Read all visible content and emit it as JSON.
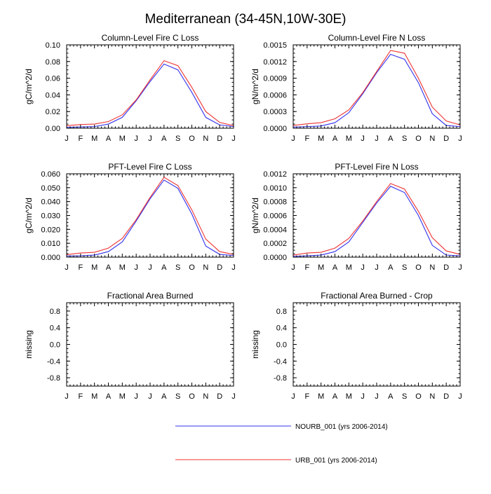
{
  "figure": {
    "title": "Mediterranean (34-45N,10W-30E)"
  },
  "legend": {
    "entries": [
      {
        "name": "NOURB_001 (yrs 2006-2014)",
        "color": "#3333ee"
      },
      {
        "name": "URB_001 (yrs 2006-2014)",
        "color": "#ee3333"
      }
    ]
  },
  "chart_data": [
    {
      "type": "line",
      "title": "Column-Level Fire C Loss",
      "xlabel": "",
      "ylabel": "gC/m^2/d",
      "categories": [
        "J",
        "F",
        "M",
        "A",
        "M",
        "J",
        "J",
        "A",
        "S",
        "O",
        "N",
        "D",
        "J"
      ],
      "ylim": [
        0,
        0.1
      ],
      "yticks": [
        "0.00",
        "0.02",
        "0.04",
        "0.06",
        "0.08",
        "0.10"
      ],
      "series": [
        {
          "name": "NOURB_001 (yrs 2006-2014)",
          "color": "#3333ee",
          "values": [
            0.001,
            0.0015,
            0.002,
            0.005,
            0.013,
            0.033,
            0.056,
            0.077,
            0.07,
            0.043,
            0.013,
            0.004,
            0.002
          ]
        },
        {
          "name": "URB_001 (yrs 2006-2014)",
          "color": "#ee3333",
          "values": [
            0.003,
            0.0045,
            0.005,
            0.008,
            0.016,
            0.034,
            0.058,
            0.081,
            0.075,
            0.049,
            0.02,
            0.007,
            0.003
          ]
        }
      ]
    },
    {
      "type": "line",
      "title": "Column-Level Fire N Loss",
      "xlabel": "",
      "ylabel": "gN/m^2/d",
      "categories": [
        "J",
        "F",
        "M",
        "A",
        "M",
        "J",
        "J",
        "A",
        "S",
        "O",
        "N",
        "D",
        "J"
      ],
      "ylim": [
        0,
        0.0015
      ],
      "yticks": [
        "0.0000",
        "0.0003",
        "0.0006",
        "0.0009",
        "0.0012",
        "0.0015"
      ],
      "series": [
        {
          "name": "NOURB_001 (yrs 2006-2014)",
          "color": "#3333ee",
          "values": [
            2e-05,
            3e-05,
            4e-05,
            0.0001,
            0.00028,
            0.00062,
            0.001,
            0.00133,
            0.00124,
            0.00082,
            0.00026,
            5e-05,
            3e-05
          ]
        },
        {
          "name": "URB_001 (yrs 2006-2014)",
          "color": "#ee3333",
          "values": [
            5e-05,
            8e-05,
            0.0001,
            0.00017,
            0.00033,
            0.00064,
            0.00102,
            0.0014,
            0.00135,
            0.0009,
            0.00038,
            0.00013,
            6e-05
          ]
        }
      ]
    },
    {
      "type": "line",
      "title": "PFT-Level Fire C Loss",
      "xlabel": "",
      "ylabel": "gC/m^2/d",
      "categories": [
        "J",
        "F",
        "M",
        "A",
        "M",
        "J",
        "J",
        "A",
        "S",
        "O",
        "N",
        "D",
        "J"
      ],
      "ylim": [
        0,
        0.06
      ],
      "yticks": [
        "0.000",
        "0.010",
        "0.020",
        "0.030",
        "0.040",
        "0.050",
        "0.060"
      ],
      "series": [
        {
          "name": "NOURB_001 (yrs 2006-2014)",
          "color": "#3333ee",
          "values": [
            0.0008,
            0.001,
            0.0015,
            0.004,
            0.011,
            0.026,
            0.042,
            0.0555,
            0.0495,
            0.031,
            0.008,
            0.002,
            0.0012
          ]
        },
        {
          "name": "URB_001 (yrs 2006-2014)",
          "color": "#ee3333",
          "values": [
            0.0018,
            0.003,
            0.0035,
            0.0065,
            0.0135,
            0.027,
            0.043,
            0.0575,
            0.0515,
            0.034,
            0.013,
            0.004,
            0.002
          ]
        }
      ]
    },
    {
      "type": "line",
      "title": "PFT-Level Fire N Loss",
      "xlabel": "",
      "ylabel": "gN/m^2/d",
      "categories": [
        "J",
        "F",
        "M",
        "A",
        "M",
        "J",
        "J",
        "A",
        "S",
        "O",
        "N",
        "D",
        "J"
      ],
      "ylim": [
        0,
        0.0012
      ],
      "yticks": [
        "0.0000",
        "0.0002",
        "0.0004",
        "0.0006",
        "0.0008",
        "0.0010",
        "0.0012"
      ],
      "series": [
        {
          "name": "NOURB_001 (yrs 2006-2014)",
          "color": "#3333ee",
          "values": [
            1e-05,
            2e-05,
            3e-05,
            8e-05,
            0.00022,
            0.0005,
            0.00078,
            0.00102,
            0.00093,
            0.0006,
            0.00017,
            3e-05,
            2e-05
          ]
        },
        {
          "name": "URB_001 (yrs 2006-2014)",
          "color": "#ee3333",
          "values": [
            3e-05,
            6e-05,
            7e-05,
            0.00013,
            0.00027,
            0.00052,
            0.0008,
            0.00106,
            0.00098,
            0.00066,
            0.00028,
            9e-05,
            4e-05
          ]
        }
      ]
    },
    {
      "type": "line",
      "title": "Fractional Area Burned",
      "xlabel": "",
      "ylabel": "missing",
      "categories": [
        "J",
        "F",
        "M",
        "A",
        "M",
        "J",
        "J",
        "A",
        "S",
        "O",
        "N",
        "D",
        "J"
      ],
      "ylim": [
        -1,
        1
      ],
      "yticks": [
        "-0.8",
        "-0.4",
        "0.0",
        "0.4",
        "0.8"
      ],
      "series": []
    },
    {
      "type": "line",
      "title": "Fractional Area Burned - Crop",
      "xlabel": "",
      "ylabel": "missing",
      "categories": [
        "J",
        "F",
        "M",
        "A",
        "M",
        "J",
        "J",
        "A",
        "S",
        "O",
        "N",
        "D",
        "J"
      ],
      "ylim": [
        -1,
        1
      ],
      "yticks": [
        "-0.8",
        "-0.4",
        "0.0",
        "0.4",
        "0.8"
      ],
      "series": []
    }
  ]
}
